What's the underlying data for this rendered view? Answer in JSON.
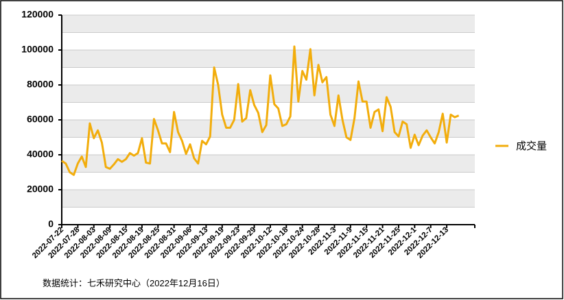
{
  "chart_data": {
    "type": "line",
    "categories": [
      "2022-07-22",
      null,
      null,
      null,
      "2022-07-28",
      null,
      null,
      null,
      "2022-08-03",
      null,
      null,
      null,
      "2022-08-09",
      null,
      null,
      null,
      "2022-08-15",
      null,
      null,
      null,
      "2022-08-19",
      null,
      null,
      null,
      "2022-08-25",
      null,
      null,
      null,
      "2022-08-31",
      null,
      null,
      null,
      "2022-09-06",
      null,
      null,
      null,
      "2022-09-13",
      null,
      null,
      null,
      "2022-09-19",
      null,
      null,
      null,
      "2022-09-23",
      null,
      null,
      null,
      "2022-09-29",
      null,
      null,
      null,
      "2022-10-12",
      null,
      null,
      null,
      "2022-10-18",
      null,
      null,
      null,
      "2022-10-24",
      null,
      null,
      null,
      "2022-10-28",
      null,
      null,
      null,
      "2022-11-3",
      null,
      null,
      null,
      "2022-11-9",
      null,
      null,
      null,
      "2022-11-15",
      null,
      null,
      null,
      "2022-11-21",
      null,
      null,
      null,
      "2022-11-25",
      null,
      null,
      null,
      "2022-12-1",
      null,
      null,
      null,
      "2022-12-7",
      null,
      null,
      null,
      "2022-12-13",
      null,
      null,
      null
    ],
    "series": [
      {
        "name": "成交量",
        "color": "#f2ad0c",
        "values": [
          36500,
          35000,
          30000,
          28500,
          35000,
          39000,
          33000,
          58000,
          49500,
          54000,
          47000,
          33000,
          32000,
          34500,
          37500,
          36000,
          37500,
          41000,
          39500,
          41000,
          49500,
          35500,
          35000,
          60500,
          54000,
          46500,
          46500,
          41500,
          64500,
          53000,
          48000,
          40500,
          46000,
          38000,
          35000,
          48000,
          46000,
          50500,
          90000,
          80000,
          63000,
          55500,
          55500,
          60000,
          80500,
          59000,
          61000,
          77000,
          68500,
          64000,
          53000,
          57000,
          85500,
          69000,
          66500,
          56500,
          57500,
          62000,
          102000,
          70500,
          88000,
          83000,
          100500,
          74000,
          91500,
          81500,
          84500,
          63000,
          56500,
          74000,
          60000,
          50000,
          48500,
          61000,
          82000,
          70500,
          70500,
          55500,
          64500,
          66000,
          53500,
          73000,
          67500,
          53000,
          50500,
          59000,
          57500,
          44000,
          51500,
          45500,
          51000,
          54000,
          50000,
          46500,
          53000,
          63500,
          47000,
          63000,
          61500,
          62500
        ]
      }
    ],
    "ylim": [
      0,
      120000
    ],
    "yticks": [
      0,
      20000,
      40000,
      60000,
      80000,
      100000,
      120000
    ],
    "grid": true,
    "legend": "right",
    "note": "数据统计：七禾研究中心（2022年12月16日）"
  }
}
